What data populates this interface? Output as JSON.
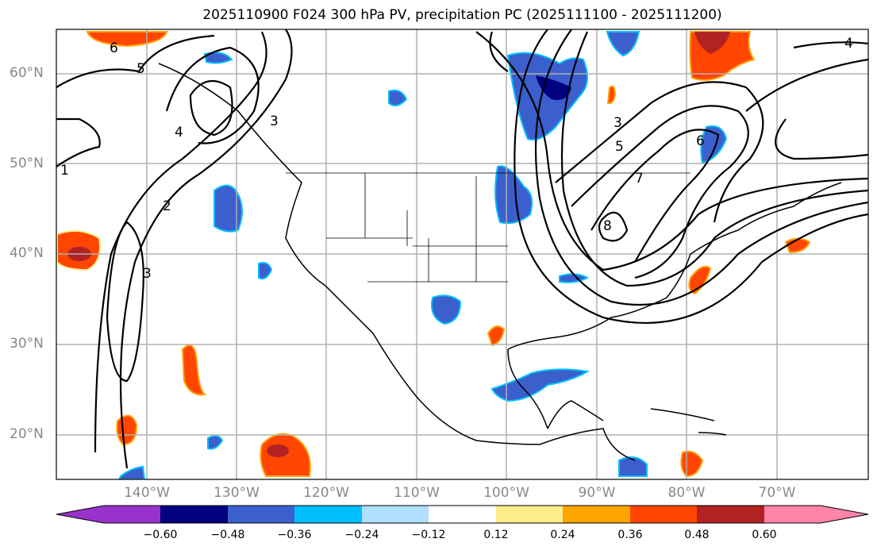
{
  "title": "2025110900 F024 300 hPa PV, precipitation PC (2025111100 - 2025111200)",
  "lat_labels": [
    "60°N",
    "50°N",
    "40°N",
    "30°N",
    "20°N"
  ],
  "lon_labels": [
    "140°W",
    "130°W",
    "120°W",
    "110°W",
    "100°W",
    "90°W",
    "80°W",
    "70°W"
  ],
  "contour_labels": [
    "1",
    "2",
    "3",
    "3",
    "4",
    "5",
    "6",
    "6",
    "3",
    "5",
    "7",
    "8",
    "4"
  ],
  "colorbar": {
    "ticks": [
      "−0.60",
      "−0.48",
      "−0.36",
      "−0.24",
      "−0.12",
      "0.12",
      "0.24",
      "0.36",
      "0.48",
      "0.60"
    ],
    "colors": [
      "#9932cc",
      "#000080",
      "#3b5fcd",
      "#00bfff",
      "#b0e0ff",
      "#ffffff",
      "#ffec8b",
      "#ffa500",
      "#ff4500",
      "#b22222",
      "#ff85a9"
    ]
  }
}
